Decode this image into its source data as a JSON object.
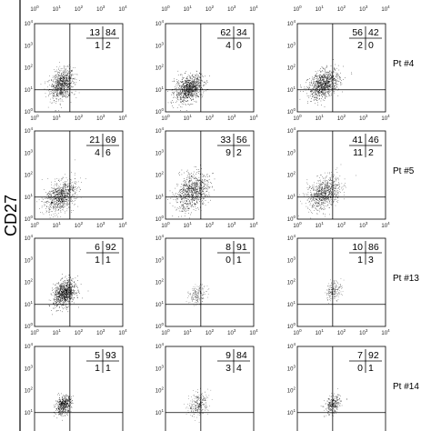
{
  "chart_data": {
    "type": "scatter",
    "y_axis_label": "CD27",
    "axis_tick_labels": [
      "10",
      "10",
      "10",
      "10",
      "10"
    ],
    "axis_tick_exponents": [
      "0",
      "1",
      "2",
      "3",
      "4"
    ],
    "axis_scale": "log",
    "axis_range": [
      1,
      10000
    ],
    "gate_position": {
      "x": 40,
      "y": 10
    },
    "panels": [
      {
        "row": 0,
        "col": 0,
        "quadrants": [
          "13",
          "84",
          "1",
          "2"
        ]
      },
      {
        "row": 0,
        "col": 1,
        "quadrants": [
          "62",
          "34",
          "4",
          "0"
        ]
      },
      {
        "row": 0,
        "col": 2,
        "quadrants": [
          "56",
          "42",
          "2",
          "0"
        ]
      },
      {
        "row": 1,
        "col": 0,
        "quadrants": [
          "21",
          "69",
          "4",
          "6"
        ]
      },
      {
        "row": 1,
        "col": 1,
        "quadrants": [
          "33",
          "56",
          "9",
          "2"
        ]
      },
      {
        "row": 1,
        "col": 2,
        "quadrants": [
          "41",
          "46",
          "11",
          "2"
        ]
      },
      {
        "row": 2,
        "col": 0,
        "quadrants": [
          "6",
          "92",
          "1",
          "1"
        ]
      },
      {
        "row": 2,
        "col": 1,
        "quadrants": [
          "8",
          "91",
          "0",
          "1"
        ]
      },
      {
        "row": 2,
        "col": 2,
        "quadrants": [
          "10",
          "86",
          "1",
          "3"
        ]
      },
      {
        "row": 3,
        "col": 0,
        "quadrants": [
          "5",
          "93",
          "1",
          "1"
        ]
      },
      {
        "row": 3,
        "col": 1,
        "quadrants": [
          "9",
          "84",
          "3",
          "4"
        ]
      },
      {
        "row": 3,
        "col": 2,
        "quadrants": [
          "7",
          "92",
          "0",
          "1"
        ]
      }
    ],
    "row_labels": [
      "Pt #4",
      "Pt #5",
      "Pt #13",
      "Pt #14"
    ]
  },
  "colors": {
    "ink": "#000000",
    "background": "#ffffff"
  }
}
